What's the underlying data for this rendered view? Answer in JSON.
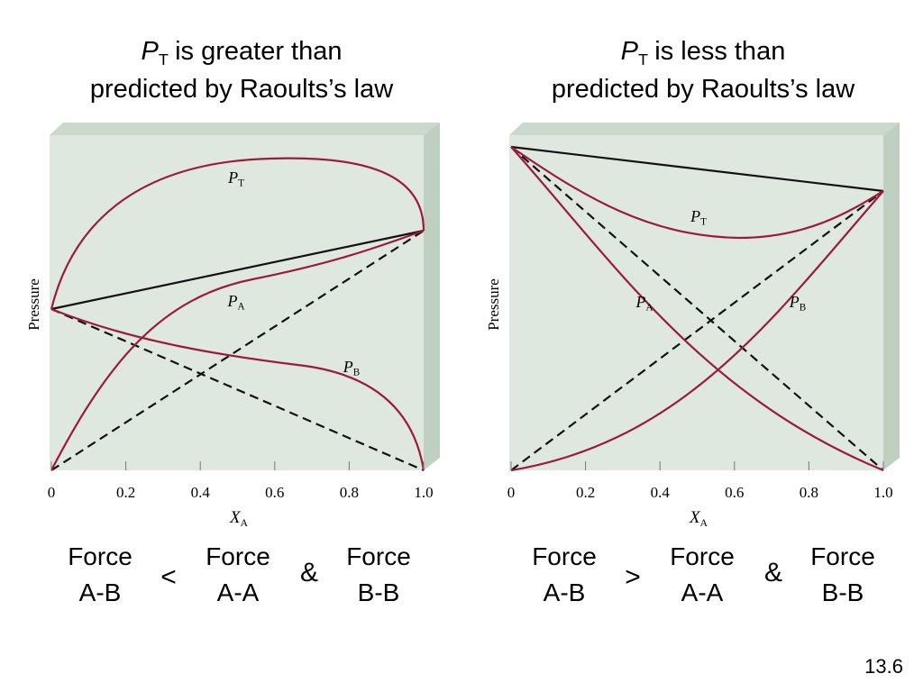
{
  "panels": [
    {
      "title": {
        "symbol": "P",
        "subscript": "T",
        "text": "is greater than",
        "line2": "predicted by Raoults’s law"
      },
      "y_label": "Pressure",
      "x_label": {
        "symbol": "X",
        "subscript": "A"
      },
      "x_ticks": [
        "0",
        "0.2",
        "0.4",
        "0.6",
        "0.8",
        "1.0"
      ],
      "curve_labels": [
        {
          "symbol": "P",
          "subscript": "T"
        },
        {
          "symbol": "P",
          "subscript": "A"
        },
        {
          "symbol": "P",
          "subscript": "B"
        }
      ],
      "comparison": {
        "left": [
          "Force",
          "A-B"
        ],
        "operator": "<",
        "middle": [
          "Force",
          "A-A"
        ],
        "joiner": "&",
        "right": [
          "Force",
          "B-B"
        ]
      }
    },
    {
      "title": {
        "symbol": "P",
        "subscript": "T",
        "text": "is less than",
        "line2": "predicted by Raoults’s law"
      },
      "y_label": "Pressure",
      "x_label": {
        "symbol": "X",
        "subscript": "A"
      },
      "x_ticks": [
        "0",
        "0.2",
        "0.4",
        "0.6",
        "0.8",
        "1.0"
      ],
      "curve_labels": [
        {
          "symbol": "P",
          "subscript": "T"
        },
        {
          "symbol": "P",
          "subscript": "A"
        },
        {
          "symbol": "P",
          "subscript": "B"
        }
      ],
      "comparison": {
        "left": [
          "Force",
          "A-B"
        ],
        "operator": ">",
        "middle": [
          "Force",
          "A-A"
        ],
        "joiner": "&",
        "right": [
          "Force",
          "B-B"
        ]
      }
    }
  ],
  "slide_number": "13.6"
}
